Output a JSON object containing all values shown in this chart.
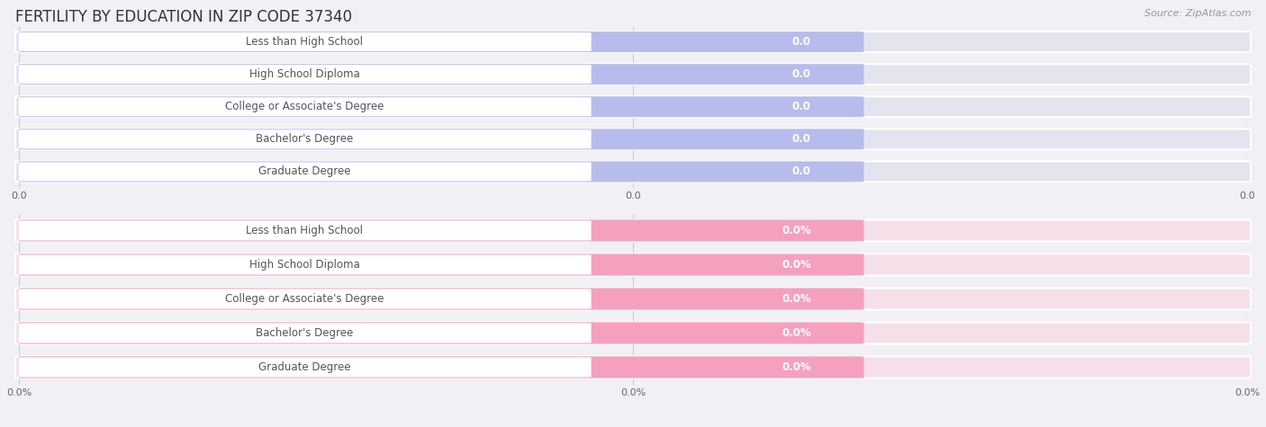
{
  "title": "FERTILITY BY EDUCATION IN ZIP CODE 37340",
  "source": "Source: ZipAtlas.com",
  "categories": [
    "Less than High School",
    "High School Diploma",
    "College or Associate's Degree",
    "Bachelor's Degree",
    "Graduate Degree"
  ],
  "values_top": [
    0.0,
    0.0,
    0.0,
    0.0,
    0.0
  ],
  "values_bottom": [
    0.0,
    0.0,
    0.0,
    0.0,
    0.0
  ],
  "bar_color_top": "#b8bcec",
  "bar_color_bottom": "#f5a0be",
  "value_label_top": [
    "0.0",
    "0.0",
    "0.0",
    "0.0",
    "0.0"
  ],
  "value_label_bottom": [
    "0.0%",
    "0.0%",
    "0.0%",
    "0.0%",
    "0.0%"
  ],
  "xtick_labels_top": [
    "0.0",
    "0.0",
    "0.0"
  ],
  "xtick_labels_bottom": [
    "0.0%",
    "0.0%",
    "0.0%"
  ],
  "bg_color": "#f0f0f5",
  "row_bg_color_top": "#e4e4ef",
  "row_bg_color_bottom": "#f5e0ea",
  "white_pill_color": "#ffffff",
  "label_text_color": "#555555",
  "value_text_color": "#ffffff",
  "grid_color": "#cccccc",
  "title_fontsize": 12,
  "label_fontsize": 8.5,
  "value_fontsize": 8.5,
  "tick_fontsize": 8,
  "source_fontsize": 8
}
